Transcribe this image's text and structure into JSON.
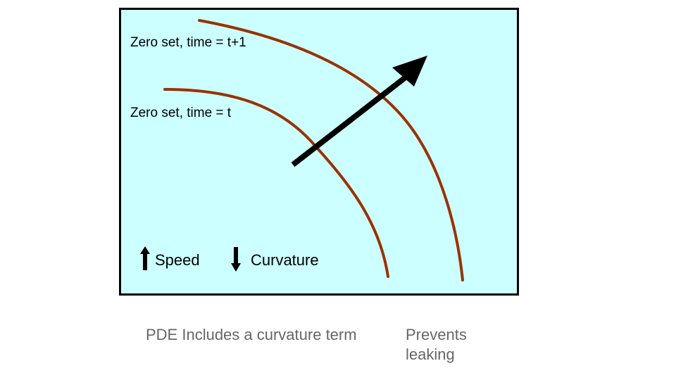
{
  "colors": {
    "background": "#ffffff",
    "panel_fill": "#ccffff",
    "panel_border": "#000000",
    "curve": "#993300",
    "arrow": "#000000",
    "caption_text": "#666666"
  },
  "diagram": {
    "zero_set_t_plus_1_label": "Zero set,  time = t+1",
    "zero_set_t_label": "Zero set,  time = t",
    "legend": {
      "speed_icon": "arrow-up-icon",
      "speed_label": "Speed",
      "curvature_icon": "arrow-down-icon",
      "curvature_label": "Curvature"
    },
    "motion_arrow_icon": "arrow-up-right-icon"
  },
  "captions": {
    "left": "PDE Includes a curvature term",
    "right": "Prevents leaking"
  }
}
